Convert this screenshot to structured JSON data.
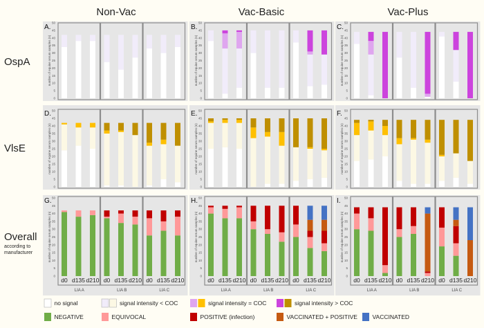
{
  "column_titles": [
    "Non-Vac",
    "Vac-Basic",
    "Vac-Plus"
  ],
  "row_titles": [
    "OspA",
    "VlsE",
    "Overall"
  ],
  "row_subtitle": [
    "according to",
    "manufacturer"
  ],
  "colors": {
    "ns": "#ffffff",
    "ospa_lt": "#f1ecfa",
    "ospa_eq": "#dfa6ef",
    "ospa_gt": "#cc44dd",
    "vlse_lt": "#fcf8e4",
    "vlse_eq": "#ffc000",
    "vlse_gt": "#bf8f00",
    "neg": "#70ad47",
    "equ": "#ff9999",
    "pos": "#c00000",
    "vp": "#c55a11",
    "vac": "#4472c4",
    "panel_bg": "#e6e6e6",
    "box_border": "#8c8c8c"
  },
  "legend": {
    "row1": [
      {
        "keys": [
          "ns"
        ],
        "label": "no signal"
      },
      {
        "keys": [
          "ospa_lt",
          "vlse_lt"
        ],
        "label": "signal intensity < COC"
      },
      {
        "keys": [
          "ospa_eq",
          "vlse_eq"
        ],
        "label": "signal intensity = COC"
      },
      {
        "keys": [
          "ospa_gt",
          "vlse_gt"
        ],
        "label": "signal intensity > COC"
      }
    ],
    "row2": [
      {
        "keys": [
          "neg"
        ],
        "label": "NEGATIVE"
      },
      {
        "keys": [
          "equ"
        ],
        "label": "EQUIVOCAL"
      },
      {
        "keys": [
          "pos"
        ],
        "label": "POSITIVE (infection)"
      },
      {
        "keys": [
          "vp"
        ],
        "label": "VACCINATED + POSITIVE"
      },
      {
        "keys": [
          "vac"
        ],
        "label": "VACCINATED"
      }
    ]
  },
  "chart_data": {
    "type": "stacked-bar",
    "ylabel": "number of equine serum samples (n)",
    "ylim": [
      0,
      50
    ],
    "yticks": [
      0,
      5,
      10,
      15,
      20,
      25,
      30,
      35,
      40,
      45,
      50
    ],
    "timepoints": [
      "d0",
      "d135",
      "d210"
    ],
    "groups": [
      "LIA A",
      "LIA B",
      "LIA C"
    ],
    "panels": [
      {
        "label": "A.",
        "row": 0,
        "col": 0,
        "keys": [
          "ns",
          "ospa_lt",
          "ospa_eq",
          "ospa_gt"
        ],
        "bars": [
          [
            [
              34,
              8
            ],
            [
              38,
              4
            ],
            [
              38,
              4
            ]
          ],
          [
            [
              24,
              18
            ],
            [
              19,
              23
            ],
            [
              27,
              15
            ]
          ],
          [
            [
              33,
              9
            ],
            [
              30,
              12
            ],
            [
              34,
              8
            ]
          ]
        ]
      },
      {
        "label": "B.",
        "row": 0,
        "col": 1,
        "keys": [
          "ns",
          "ospa_lt",
          "ospa_eq",
          "ospa_gt"
        ],
        "bars": [
          [
            [
              38,
              7
            ],
            [
              3,
              30,
              10,
              2
            ],
            [
              7,
              26,
              11,
              1
            ]
          ],
          [
            [
              30,
              15
            ],
            [
              7,
              38
            ],
            [
              7,
              38
            ]
          ],
          [
            [
              37,
              8
            ],
            [
              8,
              21,
              2,
              14
            ],
            [
              9,
              20,
              0,
              16
            ]
          ]
        ]
      },
      {
        "label": "C.",
        "row": 0,
        "col": 2,
        "keys": [
          "ns",
          "ospa_lt",
          "ospa_eq",
          "ospa_gt"
        ],
        "bars": [
          [
            [
              36,
              8
            ],
            [
              2,
              27,
              9,
              6
            ],
            [
              0,
              0,
              0,
              44
            ]
          ],
          [
            [
              27,
              17
            ],
            [
              7,
              37
            ],
            [
              1,
              0,
              2,
              41
            ]
          ],
          [
            [
              41,
              3
            ],
            [
              11,
              21,
              0,
              12
            ],
            [
              0,
              0,
              0,
              44
            ]
          ]
        ]
      },
      {
        "label": "D.",
        "row": 1,
        "col": 0,
        "keys": [
          "ns",
          "vlse_lt",
          "vlse_eq",
          "vlse_gt"
        ],
        "bars": [
          [
            [
              24,
              17,
              1
            ],
            [
              27,
              12,
              3
            ],
            [
              25,
              14,
              3
            ]
          ],
          [
            [
              1,
              34,
              2,
              5
            ],
            [
              1,
              35,
              1,
              5
            ],
            [
              0,
              34,
              0,
              8
            ]
          ],
          [
            [
              1,
              26,
              2,
              13
            ],
            [
              5,
              23,
              3,
              11
            ],
            [
              3,
              24,
              0,
              15
            ]
          ]
        ]
      },
      {
        "label": "E.",
        "row": 1,
        "col": 1,
        "keys": [
          "ns",
          "vlse_lt",
          "vlse_eq",
          "vlse_gt"
        ],
        "bars": [
          [
            [
              25,
              17,
              1,
              2
            ],
            [
              26,
              16,
              2,
              1
            ],
            [
              25,
              17,
              2,
              1
            ]
          ],
          [
            [
              0,
              32,
              7,
              6
            ],
            [
              2,
              31,
              3,
              9
            ],
            [
              2,
              25,
              9,
              9
            ]
          ],
          [
            [
              4,
              22,
              0,
              19
            ],
            [
              5,
              20,
              1,
              19
            ],
            [
              6,
              18,
              1,
              20
            ]
          ]
        ]
      },
      {
        "label": "F.",
        "row": 1,
        "col": 2,
        "keys": [
          "ns",
          "vlse_lt",
          "vlse_eq",
          "vlse_gt"
        ],
        "bars": [
          [
            [
              17,
              17,
              8,
              2
            ],
            [
              18,
              19,
              6,
              1
            ],
            [
              20,
              14,
              6,
              4
            ]
          ],
          [
            [
              4,
              24,
              4,
              12
            ],
            [
              2,
              29,
              1,
              12
            ],
            [
              2,
              27,
              2,
              13
            ]
          ],
          [
            [
              4,
              16,
              1,
              23
            ],
            [
              6,
              16,
              0,
              22
            ],
            [
              2,
              15,
              0,
              27
            ]
          ]
        ]
      },
      {
        "label": "G.",
        "row": 2,
        "col": 0,
        "keys": [
          "neg",
          "equ",
          "pos",
          "vp",
          "vac"
        ],
        "bars": [
          [
            [
              41,
              1
            ],
            [
              38,
              4
            ],
            [
              39,
              3
            ]
          ],
          [
            [
              37,
              1,
              4
            ],
            [
              34,
              6,
              2
            ],
            [
              33,
              5,
              4
            ]
          ],
          [
            [
              26,
              11,
              5
            ],
            [
              29,
              6,
              7
            ],
            [
              26,
              12,
              4
            ]
          ]
        ]
      },
      {
        "label": "H.",
        "row": 2,
        "col": 1,
        "keys": [
          "neg",
          "equ",
          "pos",
          "vp",
          "vac"
        ],
        "bars": [
          [
            [
              40,
              4,
              1
            ],
            [
              37,
              6,
              2
            ],
            [
              37,
              7,
              1
            ]
          ],
          [
            [
              30,
              5,
              10
            ],
            [
              27,
              3,
              15
            ],
            [
              22,
              6,
              17
            ]
          ],
          [
            [
              25,
              8,
              12
            ],
            [
              18,
              7,
              4,
              7,
              9
            ],
            [
              16,
              5,
              8,
              7,
              9
            ]
          ]
        ]
      },
      {
        "label": "I.",
        "row": 2,
        "col": 2,
        "keys": [
          "neg",
          "equ",
          "pos",
          "vp",
          "vac"
        ],
        "bars": [
          [
            [
              30,
              10,
              4
            ],
            [
              29,
              8,
              7
            ],
            [
              2,
              5,
              37
            ]
          ],
          [
            [
              25,
              5,
              14
            ],
            [
              27,
              5,
              12
            ],
            [
              0,
              2,
              1,
              37,
              4
            ]
          ],
          [
            [
              19,
              12,
              13
            ],
            [
              13,
              8,
              11,
              4,
              8
            ],
            [
              0,
              0,
              0,
              23,
              21
            ]
          ]
        ]
      }
    ]
  }
}
